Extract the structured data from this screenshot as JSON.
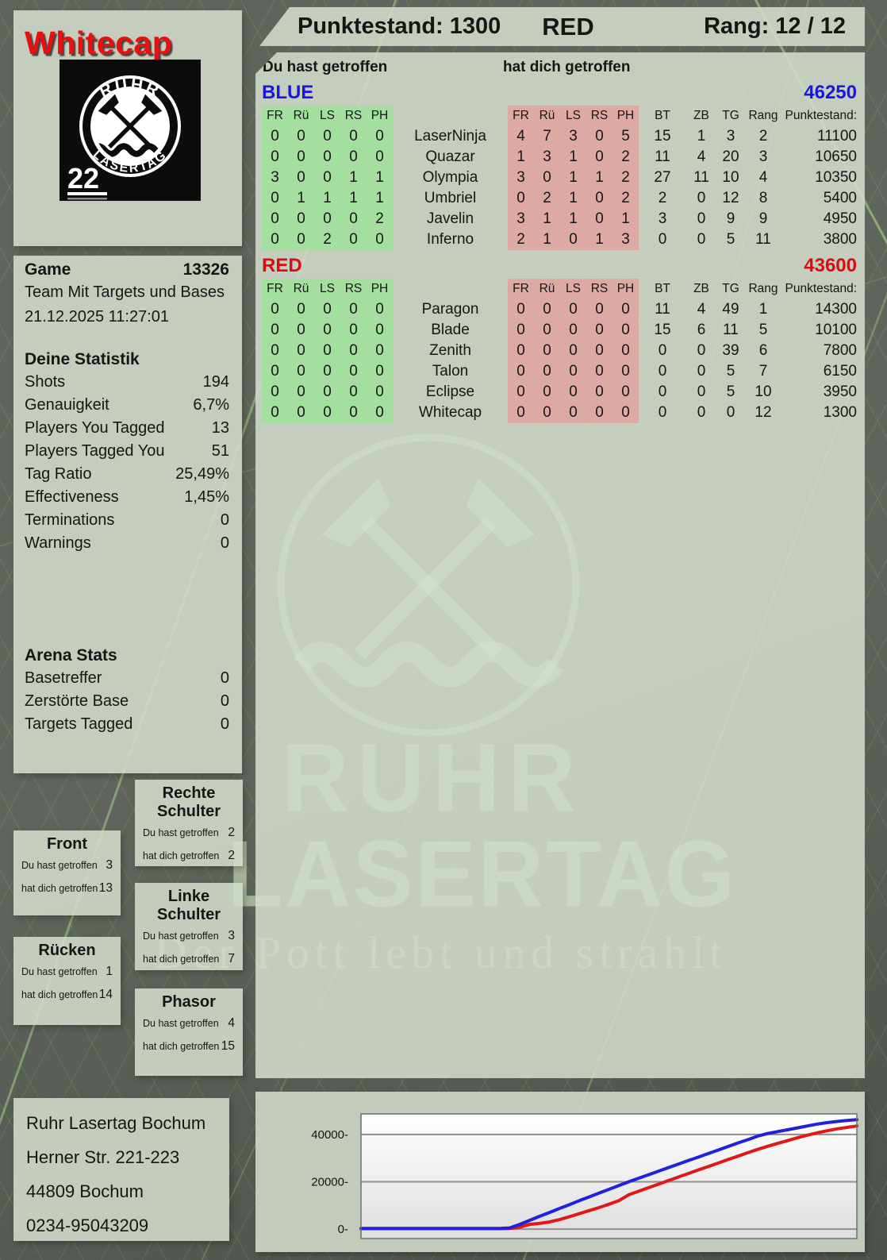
{
  "player": {
    "name": "Whitecap"
  },
  "header": {
    "score": "Punktestand: 1300",
    "team": "RED",
    "rank": "Rang: 12 / 12"
  },
  "logo": {
    "arc_top": "RUHR",
    "arc_bottom": "LASERTAG",
    "badge_number": "22"
  },
  "labels": {
    "du": "Du hast getroffen",
    "dich": "hat dich getroffen"
  },
  "table": {
    "hit_cols": [
      "FR",
      "Rü",
      "LS",
      "RS",
      "PH"
    ],
    "tail_cols": [
      "BT",
      "ZB",
      "TG",
      "Rang",
      "Punktestand:"
    ]
  },
  "teams": [
    {
      "name": "BLUE",
      "total": "46250",
      "color": "#1a16e0",
      "players": [
        {
          "du": [
            "0",
            "0",
            "0",
            "0",
            "0"
          ],
          "name": "LaserNinja",
          "dich": [
            "4",
            "7",
            "3",
            "0",
            "5"
          ],
          "bt": "15",
          "zb": "1",
          "tg": "3",
          "rang": "2",
          "punkte": "11100"
        },
        {
          "du": [
            "0",
            "0",
            "0",
            "0",
            "0"
          ],
          "name": "Quazar",
          "dich": [
            "1",
            "3",
            "1",
            "0",
            "2"
          ],
          "bt": "11",
          "zb": "4",
          "tg": "20",
          "rang": "3",
          "punkte": "10650"
        },
        {
          "du": [
            "3",
            "0",
            "0",
            "1",
            "1"
          ],
          "name": "Olympia",
          "dich": [
            "3",
            "0",
            "1",
            "1",
            "2"
          ],
          "bt": "27",
          "zb": "11",
          "tg": "10",
          "rang": "4",
          "punkte": "10350"
        },
        {
          "du": [
            "0",
            "1",
            "1",
            "1",
            "1"
          ],
          "name": "Umbriel",
          "dich": [
            "0",
            "2",
            "1",
            "0",
            "2"
          ],
          "bt": "2",
          "zb": "0",
          "tg": "12",
          "rang": "8",
          "punkte": "5400"
        },
        {
          "du": [
            "0",
            "0",
            "0",
            "0",
            "2"
          ],
          "name": "Javelin",
          "dich": [
            "3",
            "1",
            "1",
            "0",
            "1"
          ],
          "bt": "3",
          "zb": "0",
          "tg": "9",
          "rang": "9",
          "punkte": "4950"
        },
        {
          "du": [
            "0",
            "0",
            "2",
            "0",
            "0"
          ],
          "name": "Inferno",
          "dich": [
            "2",
            "1",
            "0",
            "1",
            "3"
          ],
          "bt": "0",
          "zb": "0",
          "tg": "5",
          "rang": "11",
          "punkte": "3800"
        }
      ]
    },
    {
      "name": "RED",
      "total": "43600",
      "color": "#d90d0d",
      "players": [
        {
          "du": [
            "0",
            "0",
            "0",
            "0",
            "0"
          ],
          "name": "Paragon",
          "dich": [
            "0",
            "0",
            "0",
            "0",
            "0"
          ],
          "bt": "11",
          "zb": "4",
          "tg": "49",
          "rang": "1",
          "punkte": "14300"
        },
        {
          "du": [
            "0",
            "0",
            "0",
            "0",
            "0"
          ],
          "name": "Blade",
          "dich": [
            "0",
            "0",
            "0",
            "0",
            "0"
          ],
          "bt": "15",
          "zb": "6",
          "tg": "11",
          "rang": "5",
          "punkte": "10100"
        },
        {
          "du": [
            "0",
            "0",
            "0",
            "0",
            "0"
          ],
          "name": "Zenith",
          "dich": [
            "0",
            "0",
            "0",
            "0",
            "0"
          ],
          "bt": "0",
          "zb": "0",
          "tg": "39",
          "rang": "6",
          "punkte": "7800"
        },
        {
          "du": [
            "0",
            "0",
            "0",
            "0",
            "0"
          ],
          "name": "Talon",
          "dich": [
            "0",
            "0",
            "0",
            "0",
            "0"
          ],
          "bt": "0",
          "zb": "0",
          "tg": "5",
          "rang": "7",
          "punkte": "6150"
        },
        {
          "du": [
            "0",
            "0",
            "0",
            "0",
            "0"
          ],
          "name": "Eclipse",
          "dich": [
            "0",
            "0",
            "0",
            "0",
            "0"
          ],
          "bt": "0",
          "zb": "0",
          "tg": "5",
          "rang": "10",
          "punkte": "3950"
        },
        {
          "du": [
            "0",
            "0",
            "0",
            "0",
            "0"
          ],
          "name": "Whitecap",
          "dich": [
            "0",
            "0",
            "0",
            "0",
            "0"
          ],
          "bt": "0",
          "zb": "0",
          "tg": "0",
          "rang": "12",
          "punkte": "1300"
        }
      ]
    }
  ],
  "sidebar": {
    "game_label": "Game",
    "game_number": "13326",
    "mode": "Team Mit Targets und Bases",
    "datetime": "21.12.2025 11:27:01",
    "stats_title": "Deine Statistik",
    "stats": [
      {
        "label": "Shots",
        "value": "194"
      },
      {
        "label": "Genauigkeit",
        "value": "6,7%"
      },
      {
        "label": "Players You Tagged",
        "value": "13"
      },
      {
        "label": "Players Tagged You",
        "value": "51"
      },
      {
        "label": "Tag Ratio",
        "value": "25,49%"
      },
      {
        "label": "Effectiveness",
        "value": "1,45%"
      },
      {
        "label": "Terminations",
        "value": "0"
      },
      {
        "label": "Warnings",
        "value": "0"
      }
    ],
    "arena_title": "Arena Stats",
    "arena": [
      {
        "label": "Basetreffer",
        "value": "0"
      },
      {
        "label": "Zerstörte Base",
        "value": "0"
      },
      {
        "label": "Targets Tagged",
        "value": "0"
      }
    ]
  },
  "hit": {
    "du_label": "Du hast getroffen",
    "dich_label": "hat dich getroffen",
    "boxes": [
      {
        "title": "Front",
        "du": "3",
        "dich": "13"
      },
      {
        "title": "Rücken",
        "du": "1",
        "dich": "14"
      },
      {
        "title": "Rechte Schulter",
        "du": "2",
        "dich": "2"
      },
      {
        "title": "Linke Schulter",
        "du": "3",
        "dich": "7"
      },
      {
        "title": "Phasor",
        "du": "4",
        "dich": "15"
      }
    ]
  },
  "contact": {
    "lines": [
      "Ruhr Lasertag Bochum",
      "Herner Str. 221-223",
      "44809 Bochum",
      "0234-95043209"
    ]
  },
  "watermark": {
    "line1": "RUHR",
    "line2": "LASERTAG",
    "tagline": "Der Pott lebt und strahlt"
  },
  "colors": {
    "green_cell": "#a4dfa0",
    "pink_cell": "#dcaaa2",
    "blue_team": "#1a16e0",
    "red_team": "#d90d0d",
    "chart_blue": "#2020dd",
    "chart_red": "#e01818",
    "panel": "#d3dccc",
    "background": "#5f655c"
  },
  "chart_data": {
    "type": "line",
    "title": "",
    "xlabel": "",
    "ylabel": "",
    "xlim": [
      0,
      100
    ],
    "ylim": [
      -4000,
      48700
    ],
    "yticks": [
      0,
      20000,
      40000
    ],
    "ytick_labels": [
      "0-",
      "20000-",
      "40000-"
    ],
    "grid": true,
    "legend": "none",
    "x": [
      0,
      4,
      8,
      12,
      16,
      20,
      24,
      28,
      30,
      32,
      34,
      36,
      38,
      40,
      42,
      44,
      46,
      48,
      50,
      52,
      54,
      56,
      58,
      60,
      62,
      64,
      66,
      68,
      70,
      72,
      74,
      76,
      78,
      80,
      82,
      84,
      86,
      88,
      90,
      92,
      94,
      96,
      98,
      100
    ],
    "series": [
      {
        "name": "RED",
        "color": "#e01818",
        "values": [
          200,
          200,
          200,
          200,
          200,
          200,
          200,
          200,
          250,
          800,
          2000,
          2400,
          3000,
          4000,
          5200,
          6500,
          7800,
          9100,
          10500,
          12000,
          14500,
          16000,
          17500,
          19000,
          20500,
          22000,
          23500,
          25000,
          26400,
          27900,
          29400,
          30800,
          32300,
          33700,
          35000,
          36200,
          37400,
          38600,
          39700,
          40700,
          41600,
          42400,
          43000,
          43600
        ]
      },
      {
        "name": "BLUE",
        "color": "#2020dd",
        "values": [
          300,
          300,
          300,
          300,
          300,
          300,
          300,
          300,
          500,
          2000,
          3700,
          5400,
          7000,
          8700,
          10300,
          12000,
          13600,
          15200,
          16800,
          18400,
          20000,
          21500,
          23000,
          24500,
          26000,
          27500,
          29000,
          30400,
          31900,
          33400,
          34900,
          36400,
          37800,
          39300,
          40400,
          41200,
          42000,
          42800,
          43600,
          44400,
          45000,
          45500,
          45900,
          46250
        ]
      }
    ]
  }
}
